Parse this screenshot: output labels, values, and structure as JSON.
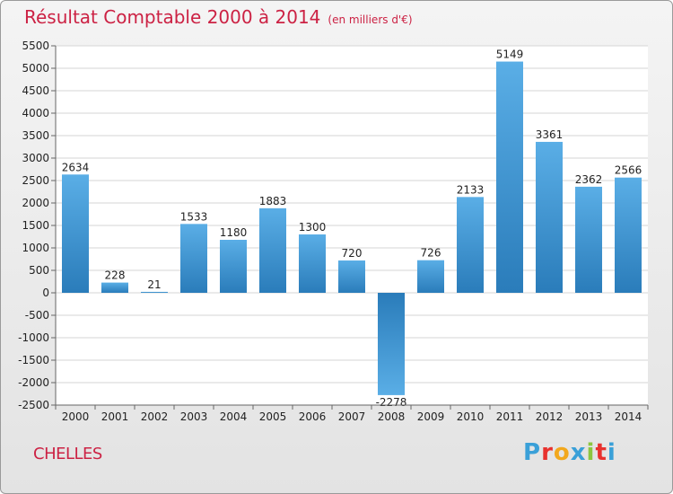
{
  "header": {
    "title": "Résultat Comptable 2000 à 2014",
    "unit_note": "(en milliers d'€)"
  },
  "footer": {
    "city": "CHELLES",
    "logo_letters": [
      "P",
      "r",
      "o",
      "x",
      "i",
      "t",
      "i"
    ],
    "logo_colors": [
      "#3aa0d8",
      "#e8322e",
      "#f2a81d",
      "#3aa0d8",
      "#8cc63f",
      "#e8322e",
      "#3aa0d8"
    ]
  },
  "chart_data": {
    "type": "bar",
    "title": "Résultat Comptable 2000 à 2014",
    "subtitle": "(en milliers d'€)",
    "xlabel": "",
    "ylabel": "",
    "categories": [
      "2000",
      "2001",
      "2002",
      "2003",
      "2004",
      "2005",
      "2006",
      "2007",
      "2008",
      "2009",
      "2010",
      "2011",
      "2012",
      "2013",
      "2014"
    ],
    "values": [
      2634,
      228,
      21,
      1533,
      1180,
      1883,
      1300,
      720,
      -2278,
      726,
      2133,
      5149,
      3361,
      2362,
      2566
    ],
    "ylim": [
      -2500,
      5500
    ],
    "yticks": [
      5500,
      5000,
      4500,
      4000,
      3500,
      3000,
      2500,
      2000,
      1500,
      1000,
      500,
      0,
      -500,
      -1000,
      -1500,
      -2000,
      -2500
    ],
    "grid": true,
    "bar_color_top": "#5aaee6",
    "bar_color_bottom": "#2a7cba"
  }
}
